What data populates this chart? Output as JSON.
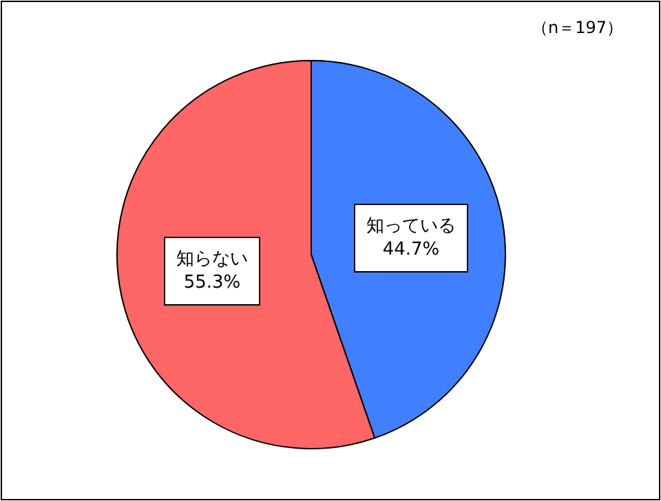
{
  "chart_data": {
    "type": "pie",
    "categories": [
      "知っている",
      "知らない"
    ],
    "values": [
      44.7,
      55.3
    ],
    "value_labels": [
      "44.7%",
      "55.3%"
    ],
    "colors": [
      "#4080ff",
      "#ff6666"
    ],
    "annotations": [
      "（n＝197）"
    ]
  }
}
